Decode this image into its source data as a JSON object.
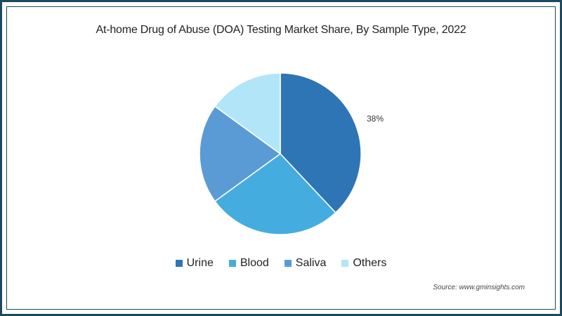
{
  "title": "At-home Drug of Abuse (DOA) Testing Market Share, By Sample Type, 2022",
  "source": "Source: www.gminsights.com",
  "label_urine": "38%",
  "legend": [
    {
      "label": "Urine",
      "color": "#2e75b6"
    },
    {
      "label": "Blood",
      "color": "#45ace0"
    },
    {
      "label": "Saliva",
      "color": "#5b9bd5"
    },
    {
      "label": "Others",
      "color": "#b3e5f8"
    }
  ],
  "chart_data": {
    "type": "pie",
    "title": "At-home Drug of Abuse (DOA) Testing Market Share, By Sample Type, 2022",
    "categories": [
      "Urine",
      "Blood",
      "Saliva",
      "Others"
    ],
    "values": [
      38,
      27,
      20,
      15
    ],
    "unit": "%",
    "data_labels": {
      "Urine": "38%"
    },
    "colors": [
      "#2e75b6",
      "#45ace0",
      "#5b9bd5",
      "#b3e5f8"
    ],
    "start_angle": "12 o'clock, clockwise",
    "legend_position": "bottom",
    "source": "Source: www.gminsights.com"
  }
}
